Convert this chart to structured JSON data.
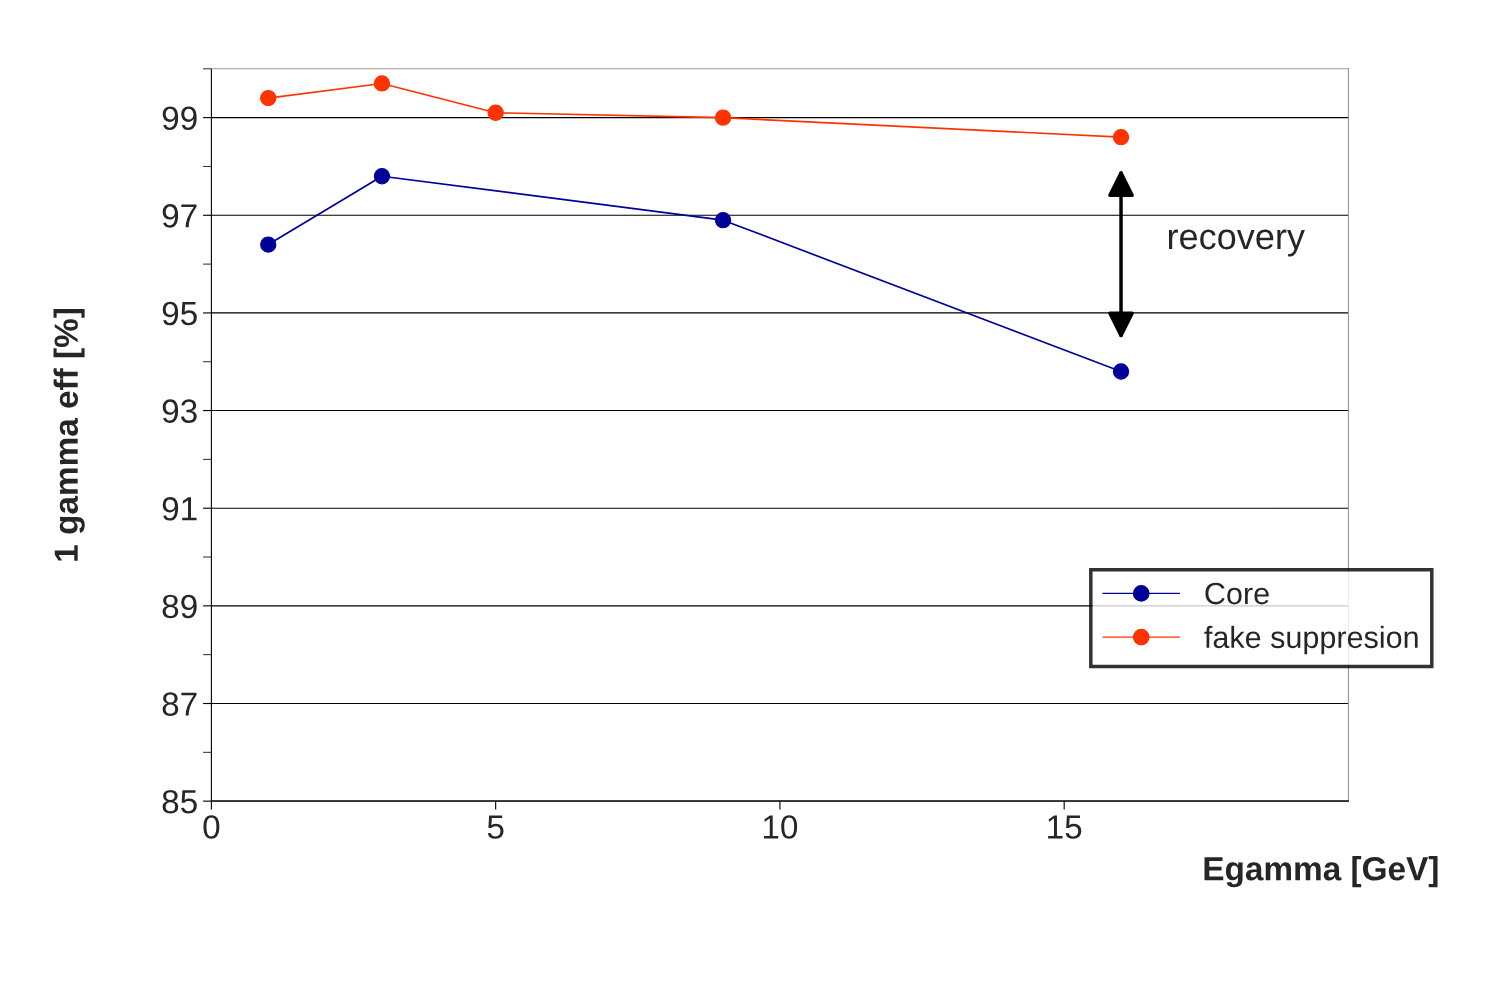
{
  "chart_data": {
    "type": "line",
    "xlabel": "Egamma [GeV]",
    "ylabel": "1 gamma eff [%]",
    "x": [
      1,
      3,
      5,
      9,
      16
    ],
    "series": [
      {
        "name": "Core",
        "color": "#000099",
        "x": [
          1,
          3,
          9,
          16
        ],
        "values": [
          96.4,
          97.8,
          96.9,
          93.8
        ]
      },
      {
        "name": "fake suppresion",
        "color": "#ff3300",
        "values": [
          99.4,
          99.7,
          99.1,
          99.0,
          98.6
        ]
      }
    ],
    "xlim": [
      0,
      20
    ],
    "xticks": [
      0,
      5,
      10,
      15
    ],
    "ylim": [
      85,
      100
    ],
    "yticks": [
      85,
      87,
      89,
      91,
      93,
      95,
      97,
      99
    ],
    "grid": "y",
    "legend": "right",
    "marker": "circle",
    "annotations": [
      "recovery"
    ]
  }
}
